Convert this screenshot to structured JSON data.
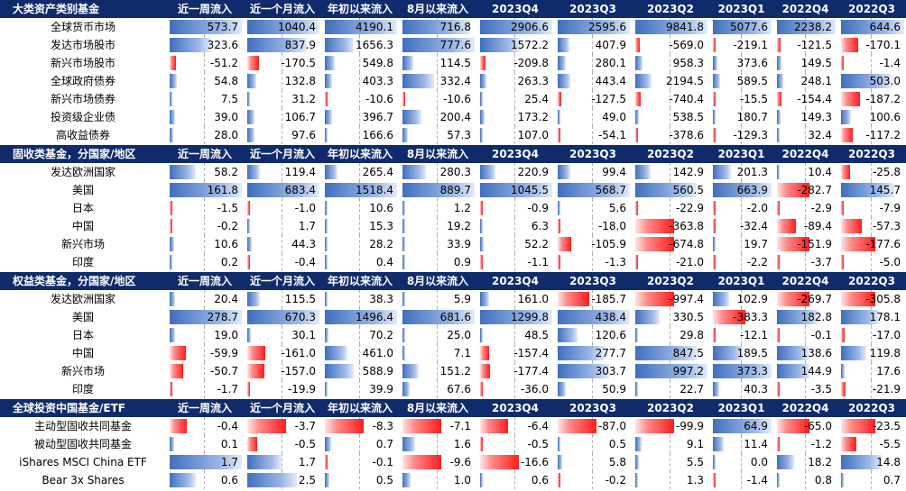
{
  "columns": [
    "近一周流入",
    "近一个月流入",
    "年初以来流入",
    "8月以来流入",
    "2023Q4",
    "2023Q3",
    "2023Q2",
    "2023Q1",
    "2022Q4",
    "2022Q3"
  ],
  "sections": [
    {
      "title": "大类资产类别基金",
      "columns": [
        "近一周流入",
        "近一个月流入",
        "年初以来流入",
        "8月以来流入",
        "2023Q4",
        "2023Q3",
        "2023Q2",
        "2023Q1",
        "2022Q4",
        "2022Q3"
      ],
      "rows": [
        {
          "label": "全球货币市场",
          "values": [
            "573.7",
            "1040.4",
            "4190.1",
            "716.8",
            "2906.6",
            "2595.6",
            "9841.8",
            "5077.6",
            "2238.2",
            "644.6"
          ]
        },
        {
          "label": "发达市场股市",
          "values": [
            "323.6",
            "837.9",
            "1656.3",
            "777.6",
            "1572.2",
            "407.9",
            "-569.0",
            "-219.1",
            "-121.5",
            "-170.1"
          ]
        },
        {
          "label": "新兴市场股市",
          "values": [
            "-51.2",
            "-170.5",
            "549.8",
            "114.5",
            "-209.8",
            "280.1",
            "958.3",
            "373.6",
            "149.5",
            "-1.4"
          ]
        },
        {
          "label": "全球政府债券",
          "values": [
            "54.8",
            "132.8",
            "403.3",
            "332.4",
            "263.3",
            "443.4",
            "2194.5",
            "589.5",
            "248.1",
            "503.0"
          ]
        },
        {
          "label": "新兴市场债券",
          "values": [
            "7.5",
            "31.2",
            "-10.6",
            "-10.6",
            "25.4",
            "-127.5",
            "-740.4",
            "-15.5",
            "-154.4",
            "-187.2"
          ]
        },
        {
          "label": "投资级企业债",
          "values": [
            "39.0",
            "106.7",
            "396.7",
            "200.4",
            "173.2",
            "49.0",
            "538.5",
            "180.7",
            "149.3",
            "100.6"
          ]
        },
        {
          "label": "高收益债券",
          "values": [
            "28.0",
            "97.6",
            "166.6",
            "57.3",
            "107.0",
            "-54.1",
            "-378.6",
            "-129.3",
            "32.4",
            "-117.2"
          ]
        }
      ]
    },
    {
      "title": "固收类基金，分国家/地区",
      "columns": [
        "近一周流入",
        "近一个月流入",
        "年初以来流入",
        "8月以来流入",
        "2023Q4",
        "2023Q3",
        "2023Q2",
        "2023Q1",
        "2022Q4",
        "2022Q3"
      ],
      "rows": [
        {
          "label": "发达欧洲国家",
          "values": [
            "58.2",
            "119.4",
            "265.4",
            "280.3",
            "220.9",
            "99.4",
            "142.9",
            "201.3",
            "10.4",
            "-25.8"
          ]
        },
        {
          "label": "美国",
          "values": [
            "161.8",
            "683.4",
            "1518.4",
            "889.7",
            "1045.5",
            "568.7",
            "560.5",
            "663.9",
            "-282.7",
            "145.7"
          ]
        },
        {
          "label": "日本",
          "values": [
            "-1.5",
            "-1.0",
            "10.6",
            "1.2",
            "-0.9",
            "5.6",
            "-22.9",
            "-2.0",
            "-2.9",
            "-7.9"
          ]
        },
        {
          "label": "中国",
          "values": [
            "-0.2",
            "1.7",
            "15.3",
            "19.2",
            "6.3",
            "-18.0",
            "-363.8",
            "-32.4",
            "-89.4",
            "-57.3"
          ]
        },
        {
          "label": "新兴市场",
          "values": [
            "10.6",
            "44.3",
            "28.2",
            "33.9",
            "52.2",
            "-105.9",
            "-674.8",
            "19.7",
            "-151.9",
            "-177.6"
          ]
        },
        {
          "label": "印度",
          "values": [
            "0.2",
            "-0.4",
            "0.4",
            "0.9",
            "-1.1",
            "-1.3",
            "-21.0",
            "-2.2",
            "-3.7",
            "-5.0"
          ]
        }
      ]
    },
    {
      "title": "权益类基金，分国家/地区",
      "columns": [
        "近一周流入",
        "近一个月流入",
        "年初以来流入",
        "8月以来流入",
        "2023Q4",
        "2023Q3",
        "2023Q2",
        "2023Q1",
        "2022Q4",
        "2022Q3"
      ],
      "rows": [
        {
          "label": "发达欧洲国家",
          "values": [
            "20.4",
            "115.5",
            "38.3",
            "5.9",
            "161.0",
            "-185.7",
            "-997.4",
            "102.9",
            "-269.7",
            "-305.8"
          ]
        },
        {
          "label": "美国",
          "values": [
            "278.7",
            "670.3",
            "1496.4",
            "681.6",
            "1299.8",
            "438.4",
            "330.5",
            "-383.3",
            "182.8",
            "178.1"
          ]
        },
        {
          "label": "日本",
          "values": [
            "19.0",
            "30.1",
            "70.2",
            "25.0",
            "48.5",
            "120.6",
            "29.8",
            "-12.1",
            "-0.1",
            "-17.0"
          ]
        },
        {
          "label": "中国",
          "values": [
            "-59.9",
            "-161.0",
            "461.0",
            "7.1",
            "-157.4",
            "277.7",
            "847.5",
            "189.5",
            "138.6",
            "119.8"
          ]
        },
        {
          "label": "新兴市场",
          "values": [
            "-50.7",
            "-157.0",
            "588.9",
            "151.2",
            "-177.4",
            "303.7",
            "997.2",
            "373.3",
            "144.9",
            "17.6"
          ]
        },
        {
          "label": "印度",
          "values": [
            "-1.7",
            "-19.9",
            "39.9",
            "67.6",
            "-36.0",
            "50.9",
            "22.7",
            "40.3",
            "-3.5",
            "-21.9"
          ]
        }
      ]
    },
    {
      "title": "全球投资中国基金/ETF",
      "columns": [
        "近一周流入",
        "近一个月流入",
        "年初以来流入",
        "8月以来流入",
        "2023Q4",
        "2023Q3",
        "2023Q2",
        "2023Q1",
        "2022Q4",
        "2022Q3"
      ],
      "rows": [
        {
          "label": "主动型固收共同基金",
          "values": [
            "-0.4",
            "-3.7",
            "-8.3",
            "-7.1",
            "-6.4",
            "-87.0",
            "-99.9",
            "64.9",
            "-65.0",
            "-23.5"
          ]
        },
        {
          "label": "被动型固收共同基金",
          "values": [
            "0.1",
            "-0.5",
            "0.7",
            "1.6",
            "-0.5",
            "0.5",
            "9.1",
            "11.4",
            "-1.2",
            "-5.5"
          ]
        },
        {
          "label": "iShares MSCI China ETF",
          "values": [
            "1.7",
            "1.7",
            "-0.1",
            "-9.6",
            "-16.6",
            "5.8",
            "5.5",
            "0.0",
            "18.2",
            "14.8"
          ]
        },
        {
          "label": "Bear 3x Shares",
          "values": [
            "0.6",
            "2.5",
            "0.5",
            "1.0",
            "0.6",
            "-0.2",
            "1.3",
            "-1.4",
            "0.8",
            "0.7"
          ]
        }
      ]
    }
  ]
}
